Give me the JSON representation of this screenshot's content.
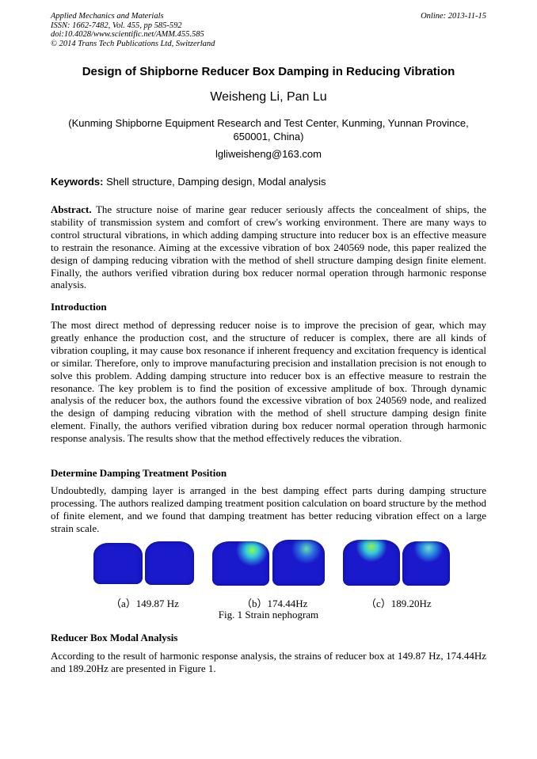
{
  "header": {
    "journal": "Applied Mechanics and Materials",
    "issn": "ISSN: 1662-7482, Vol. 455, pp 585-592",
    "doi": "doi:10.4028/www.scientific.net/AMM.455.585",
    "copyright": "© 2014 Trans Tech Publications Ltd, Switzerland",
    "online": "Online: 2013-11-15"
  },
  "title": "Design of Shipborne Reducer Box Damping in Reducing Vibration",
  "authors": "Weisheng Li, Pan Lu",
  "affiliation": "(Kunming Shipborne Equipment Research and Test Center, Kunming, Yunnan Province, 650001, China)",
  "email": "lgliweisheng@163.com",
  "keywords": {
    "label": "Keywords:",
    "text": " Shell structure, Damping design, Modal analysis"
  },
  "abstract": {
    "label": "Abstract.",
    "text": " The structure noise of marine gear reducer seriously affects the concealment of ships, the stability of transmission system and comfort of crew's working environment. There are many ways to control structural vibrations, in which adding damping structure into reducer box is an effective measure to restrain the resonance. Aiming at the excessive vibration of box 240569 node, this paper realized the design of damping reducing vibration with the method of shell structure damping design finite element. Finally, the authors verified vibration during box reducer normal operation through harmonic response analysis."
  },
  "sections": [
    {
      "heading": "Introduction",
      "text": "The most direct method of depressing reducer noise is to improve the precision of gear, which may greatly enhance the production cost, and the structure of reducer is complex, there are all kinds of vibration coupling, it may cause box resonance if inherent frequency and excitation frequency is identical or similar. Therefore, only to improve manufacturing precision and installation precision is not enough to solve this problem. Adding damping structure into reducer box is an effective measure to restrain the resonance. The key problem is to find the position of excessive amplitude of box. Through dynamic analysis of the reducer box, the authors found the excessive vibration of box 240569 node, and realized the design of damping reducing vibration with the method of shell structure damping design finite element. Finally, the authors verified vibration during box reducer normal operation through harmonic response analysis. The results show that the method effectively reduces the vibration."
    },
    {
      "heading": "Determine Damping Treatment Position",
      "text": "Undoubtedly, damping layer is arranged in the best damping effect parts during damping structure processing. The authors realized damping treatment position calculation on board structure by the method of finite element, and we found that damping treatment has better reducing vibration effect on a large strain scale."
    },
    {
      "heading": "Reducer Box Modal Analysis",
      "text": "According to the result of harmonic response analysis, the strains of reducer box at 149.87 Hz, 174.44Hz and 189.20Hz are presented in Figure 1."
    }
  ],
  "figure": {
    "subcaptions": [
      "（a）149.87 Hz",
      "（b）174.44Hz",
      "（c）189.20Hz"
    ],
    "caption": "Fig. 1 Strain nephogram",
    "colors": {
      "base": "#1a1acc",
      "high": "#40e0a0"
    }
  }
}
